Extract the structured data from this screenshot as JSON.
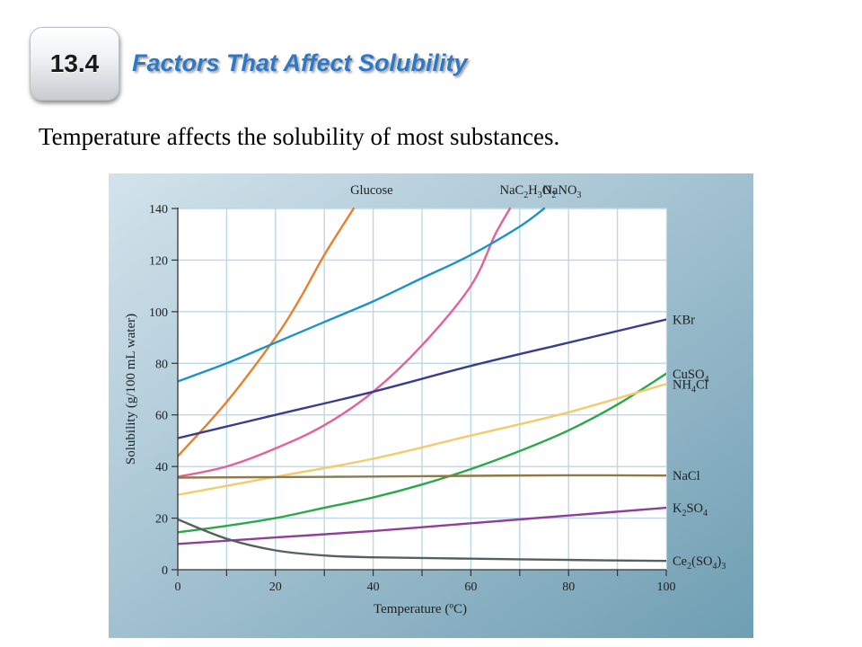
{
  "header": {
    "section_number": "13.4",
    "title": "Factors That Affect Solubility"
  },
  "subtitle": "Temperature affects the solubility of most substances.",
  "colors": {
    "title": "#2f78c4",
    "panel_gradient_start": "#cfe0ea",
    "panel_gradient_end": "#6f9eb3",
    "plot_background": "#ffffff",
    "grid": "#bcd7e6"
  },
  "chart_data": {
    "type": "line",
    "xlabel": "Temperature (ºC)",
    "ylabel": "Solubility (g/100 mL water)",
    "xlim": [
      0,
      100
    ],
    "ylim": [
      0,
      140
    ],
    "x_ticks": [
      0,
      20,
      40,
      60,
      80,
      100
    ],
    "y_ticks": [
      0,
      20,
      40,
      60,
      80,
      100,
      120,
      140
    ],
    "grid": true,
    "series": [
      {
        "name": "Glucose",
        "color": "#e8802a",
        "label_side": "top",
        "points": [
          [
            0,
            44
          ],
          [
            10,
            65
          ],
          [
            20,
            90
          ],
          [
            25,
            105
          ],
          [
            30,
            122
          ],
          [
            36,
            140
          ]
        ]
      },
      {
        "name": "NaC2H3O2",
        "sub": [
          "NaC",
          "2",
          "H",
          "3",
          "O",
          "2"
        ],
        "color": "#e4609a",
        "label_side": "top",
        "points": [
          [
            0,
            36
          ],
          [
            10,
            40
          ],
          [
            20,
            47
          ],
          [
            30,
            56
          ],
          [
            40,
            69
          ],
          [
            50,
            87
          ],
          [
            60,
            110
          ],
          [
            65,
            130
          ],
          [
            68,
            140
          ]
        ]
      },
      {
        "name": "NaNO3",
        "sub": [
          "NaNO",
          "3"
        ],
        "color": "#1c93c8",
        "label_side": "top",
        "points": [
          [
            0,
            73
          ],
          [
            10,
            80
          ],
          [
            20,
            88
          ],
          [
            30,
            96
          ],
          [
            40,
            104
          ],
          [
            50,
            113
          ],
          [
            60,
            122
          ],
          [
            70,
            133
          ],
          [
            75,
            140
          ]
        ]
      },
      {
        "name": "KBr",
        "color": "#3a3c8c",
        "label_side": "right",
        "points": [
          [
            0,
            51
          ],
          [
            20,
            60
          ],
          [
            40,
            69
          ],
          [
            60,
            79
          ],
          [
            80,
            88
          ],
          [
            100,
            97
          ]
        ]
      },
      {
        "name": "CuSO4",
        "sub": [
          "CuSO",
          "4"
        ],
        "color": "#2aa84a",
        "label_side": "right",
        "points": [
          [
            0,
            14.5
          ],
          [
            10,
            17
          ],
          [
            20,
            20
          ],
          [
            30,
            24
          ],
          [
            40,
            28
          ],
          [
            50,
            33
          ],
          [
            60,
            39
          ],
          [
            70,
            46
          ],
          [
            80,
            54
          ],
          [
            90,
            64
          ],
          [
            100,
            76
          ]
        ]
      },
      {
        "name": "NH4Cl",
        "sub": [
          "NH",
          "4",
          "Cl"
        ],
        "color": "#f2cb6a",
        "label_side": "right",
        "points": [
          [
            0,
            29
          ],
          [
            20,
            36
          ],
          [
            40,
            43
          ],
          [
            60,
            52
          ],
          [
            80,
            61
          ],
          [
            100,
            72
          ]
        ]
      },
      {
        "name": "NaCl",
        "color": "#8b7a4a",
        "label_side": "right",
        "points": [
          [
            0,
            35.7
          ],
          [
            20,
            35.9
          ],
          [
            40,
            36.1
          ],
          [
            60,
            36.4
          ],
          [
            80,
            36.6
          ],
          [
            100,
            36.5
          ]
        ]
      },
      {
        "name": "K2SO4",
        "sub": [
          "K",
          "2",
          "SO",
          "4"
        ],
        "color": "#8e3f9a",
        "label_side": "right",
        "points": [
          [
            0,
            10
          ],
          [
            20,
            12.5
          ],
          [
            40,
            15
          ],
          [
            60,
            18
          ],
          [
            80,
            21
          ],
          [
            100,
            24
          ]
        ]
      },
      {
        "name": "Ce2(SO4)3",
        "sub": [
          "Ce",
          "2",
          "(SO",
          "4",
          ")",
          "3"
        ],
        "color": "#556060",
        "label_side": "right",
        "points": [
          [
            0,
            19.5
          ],
          [
            10,
            12
          ],
          [
            20,
            7.5
          ],
          [
            30,
            5.5
          ],
          [
            40,
            4.8
          ],
          [
            60,
            4.3
          ],
          [
            80,
            3.8
          ],
          [
            100,
            3.4
          ]
        ]
      }
    ]
  }
}
